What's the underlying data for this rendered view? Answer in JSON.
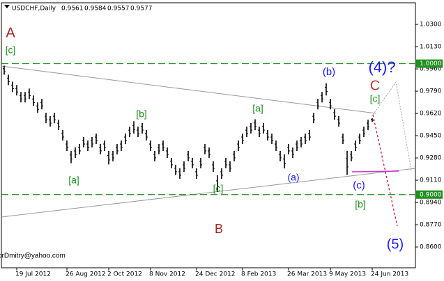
{
  "chart_data": {
    "type": "hl",
    "title": "USDCHF,Daily",
    "last_bar": [
      0.9561,
      0.9584,
      0.9557,
      0.9577
    ],
    "ylim": [
      0.8441,
      1.0465
    ],
    "yticks": [
      {
        "value": 1.03,
        "label": "1.0300"
      },
      {
        "value": 1.013,
        "label": "1.0130"
      },
      {
        "value": 0.996,
        "label": "0.9960"
      },
      {
        "value": 0.979,
        "label": "0.9790"
      },
      {
        "value": 0.962,
        "label": "0.9620"
      },
      {
        "value": 0.945,
        "label": "0.9450"
      },
      {
        "value": 0.928,
        "label": "0.9280"
      },
      {
        "value": 0.911,
        "label": "0.9110"
      },
      {
        "value": 0.894,
        "label": "0.8940"
      },
      {
        "value": 0.877,
        "label": "0.8770"
      },
      {
        "value": 0.86,
        "label": "0.8600"
      }
    ],
    "hlines": [
      {
        "value": 1,
        "label": "1.0000"
      },
      {
        "value": 0.9,
        "label": "0.9000"
      }
    ],
    "color": "#000000",
    "level_color": "#1f8f1f",
    "categories": [
      null,
      null,
      null,
      "19 Jul 2012",
      null,
      null,
      null,
      null,
      null,
      null,
      null,
      null,
      null,
      null,
      null,
      "26 Aug 2012",
      null,
      null,
      null,
      null,
      null,
      null,
      null,
      null,
      null,
      "2 Oct 2012",
      null,
      null,
      null,
      null,
      null,
      null,
      null,
      null,
      null,
      "8 Nov 2012",
      null,
      null,
      null,
      null,
      null,
      null,
      null,
      null,
      null,
      null,
      "24 Dec 2012",
      null,
      null,
      null,
      null,
      null,
      null,
      null,
      null,
      null,
      null,
      "8 Feb 2013",
      null,
      null,
      null,
      null,
      null,
      null,
      null,
      null,
      null,
      null,
      "26 Mar 2013",
      null,
      null,
      null,
      null,
      null,
      null,
      null,
      null,
      null,
      "9 May 2013",
      null,
      null,
      null,
      null,
      null,
      null,
      null,
      null,
      null,
      "24 Jun 2013"
    ],
    "high": [
      0.9985,
      0.9916,
      0.9863,
      0.9837,
      0.9784,
      0.9784,
      0.981,
      0.9757,
      0.9704,
      0.9731,
      0.9625,
      0.9599,
      0.9625,
      0.9572,
      0.9493,
      0.9413,
      0.9334,
      0.936,
      0.9387,
      0.944,
      0.9413,
      0.944,
      0.9466,
      0.9387,
      0.9413,
      0.9334,
      0.9334,
      0.9387,
      0.9413,
      0.9466,
      0.9519,
      0.956,
      0.9519,
      0.9546,
      0.9493,
      0.9413,
      0.9334,
      0.9387,
      0.9413,
      0.936,
      0.9281,
      0.9228,
      0.9201,
      0.9254,
      0.9334,
      0.9281,
      0.9201,
      0.9281,
      0.9387,
      0.936,
      0.9254,
      0.9148,
      0.9201,
      0.9281,
      0.9254,
      0.9334,
      0.9413,
      0.9466,
      0.9519,
      0.9546,
      0.9575,
      0.9519,
      0.9546,
      0.9493,
      0.9466,
      0.9413,
      0.9334,
      0.9307,
      0.9387,
      0.936,
      0.9413,
      0.944,
      0.9466,
      0.9493,
      0.9625,
      0.9731,
      0.9784,
      0.985,
      0.9731,
      0.9652,
      0.9599,
      0.9466,
      0.9334,
      0.9334,
      0.9413,
      0.9466,
      0.9519,
      0.9572,
      0.9584
    ],
    "low": [
      0.9916,
      0.9836,
      0.9783,
      0.9757,
      0.9704,
      0.9704,
      0.973,
      0.9677,
      0.9624,
      0.9651,
      0.9545,
      0.9519,
      0.9545,
      0.9492,
      0.9413,
      0.9333,
      0.924,
      0.928,
      0.9307,
      0.936,
      0.9333,
      0.936,
      0.9386,
      0.9307,
      0.9333,
      0.923,
      0.9254,
      0.9307,
      0.9333,
      0.9386,
      0.9439,
      0.9466,
      0.9439,
      0.9466,
      0.9413,
      0.9333,
      0.9254,
      0.9307,
      0.9333,
      0.928,
      0.9201,
      0.9148,
      0.9121,
      0.9174,
      0.9254,
      0.9201,
      0.9121,
      0.9201,
      0.9307,
      0.928,
      0.9174,
      0.902,
      0.9121,
      0.9201,
      0.9174,
      0.9254,
      0.9333,
      0.9386,
      0.9439,
      0.9466,
      0.9492,
      0.9439,
      0.9466,
      0.9413,
      0.9386,
      0.9333,
      0.9254,
      0.92,
      0.9307,
      0.928,
      0.9333,
      0.936,
      0.9386,
      0.9413,
      0.9545,
      0.9651,
      0.9704,
      0.9757,
      0.9651,
      0.9572,
      0.9519,
      0.9386,
      0.915,
      0.9254,
      0.9333,
      0.9386,
      0.9439,
      0.9492,
      0.9557
    ],
    "annotations": [
      {
        "text": "A",
        "color": "#a52a2a"
      },
      {
        "text": "[c]",
        "color": "#1f8f1f"
      },
      {
        "text": "[a]",
        "color": "#1f8f1f"
      },
      {
        "text": "[b]",
        "color": "#1f8f1f"
      },
      {
        "text": "[c]",
        "color": "#1f8f1f"
      },
      {
        "text": "B",
        "color": "#a52a2a"
      },
      {
        "text": "[a]",
        "color": "#1f8f1f"
      },
      {
        "text": "(a)",
        "color": "#1a1aff"
      },
      {
        "text": "(b)",
        "color": "#1a1aff"
      },
      {
        "text": "(4)?",
        "color": "#1a1aff"
      },
      {
        "text": "C",
        "color": "#c0392b"
      },
      {
        "text": "[c]",
        "color": "#1f8f1f"
      },
      {
        "text": "(c)",
        "color": "#1a1aff"
      },
      {
        "text": "[b]",
        "color": "#1f8f1f"
      },
      {
        "text": "(5)",
        "color": "#1a1aff"
      },
      {
        "text": "forDmitry@yahoo.com",
        "color": "#000000"
      }
    ]
  }
}
